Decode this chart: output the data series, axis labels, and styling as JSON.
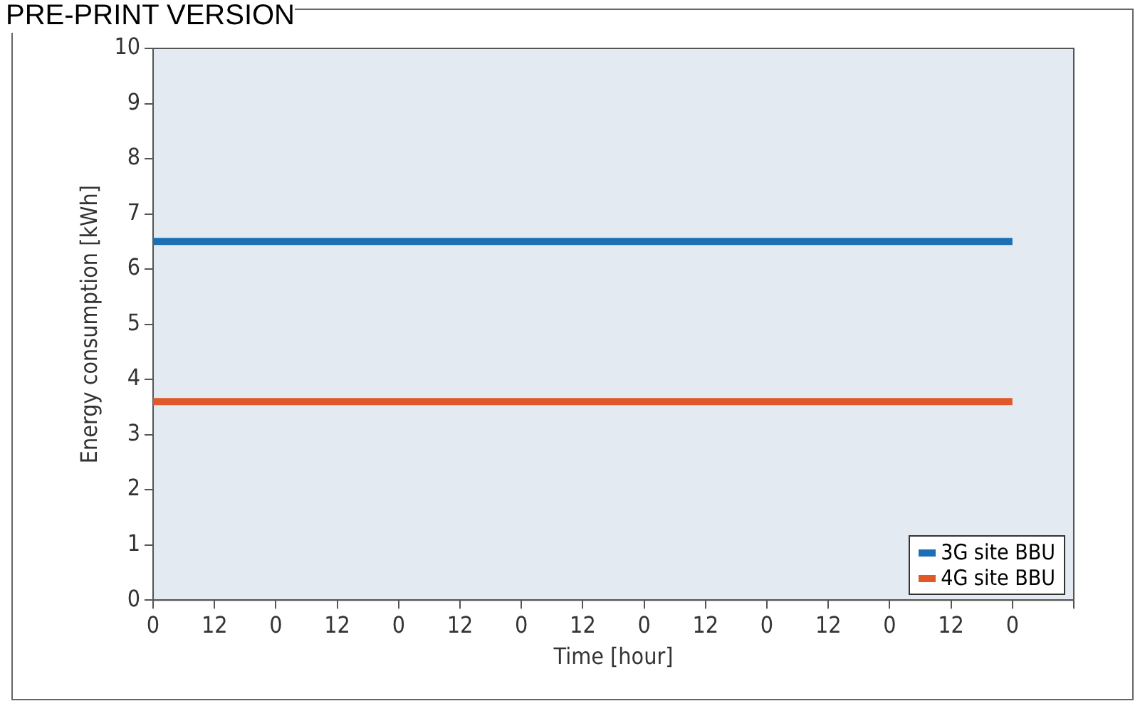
{
  "chart_data": {
    "type": "line",
    "xlabel": "Time [hour]",
    "ylabel": "Energy consumption [kWh]",
    "annotations": [
      "PRE-PRINT VERSION"
    ],
    "categories": [
      "0",
      "12",
      "0",
      "12",
      "0",
      "12",
      "0",
      "12",
      "0",
      "12",
      "0",
      "12",
      "0",
      "12",
      "0",
      null
    ],
    "series": [
      {
        "name": "3G site BBU",
        "color": "#1a6fb5",
        "values": [
          6.5,
          6.5,
          6.5,
          6.5,
          6.5,
          6.5,
          6.5,
          6.5,
          6.5,
          6.5,
          6.5,
          6.5,
          6.5,
          6.5,
          6.5,
          null
        ]
      },
      {
        "name": "4G site BBU",
        "color": "#e0592a",
        "values": [
          3.6,
          3.6,
          3.6,
          3.6,
          3.6,
          3.6,
          3.6,
          3.6,
          3.6,
          3.6,
          3.6,
          3.6,
          3.6,
          3.6,
          3.6,
          null
        ]
      }
    ],
    "ylim": [
      0,
      10
    ],
    "yticks": [
      0,
      1,
      2,
      3,
      4,
      5,
      6,
      7,
      8,
      9,
      10
    ],
    "grid": false,
    "legend": "bottom right",
    "marker": "none",
    "line_style": "solid"
  }
}
